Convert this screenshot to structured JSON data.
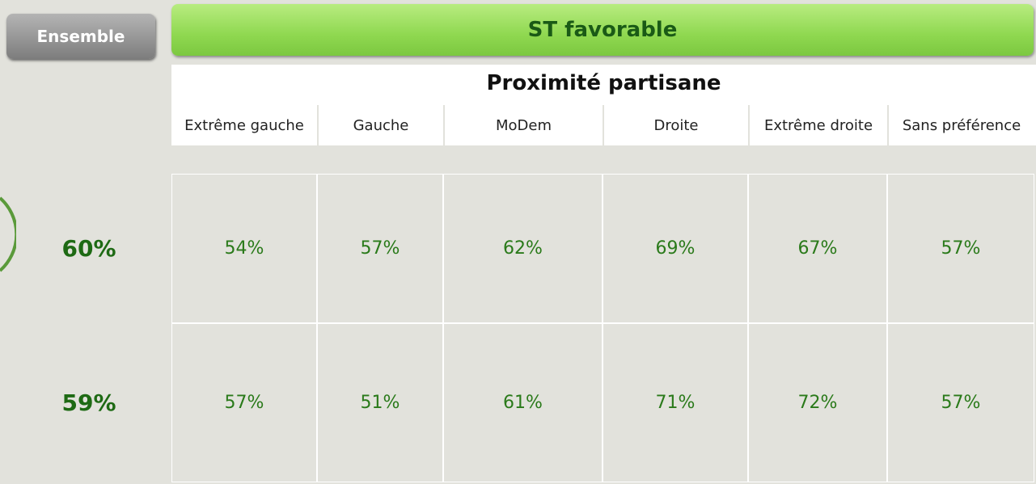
{
  "ensemble_button": "Ensemble",
  "header": {
    "title": "ST favorable",
    "subtitle": "Proximité partisane"
  },
  "columns": [
    "Extrême gauche",
    "Gauche",
    "MoDem",
    "Droite",
    "Extrême droite",
    "Sans préférence"
  ],
  "rows": [
    {
      "ensemble": "60%",
      "cells": [
        "54%",
        "57%",
        "62%",
        "69%",
        "67%",
        "57%"
      ]
    },
    {
      "ensemble": "59%",
      "cells": [
        "57%",
        "51%",
        "61%",
        "71%",
        "72%",
        "57%"
      ]
    }
  ]
}
